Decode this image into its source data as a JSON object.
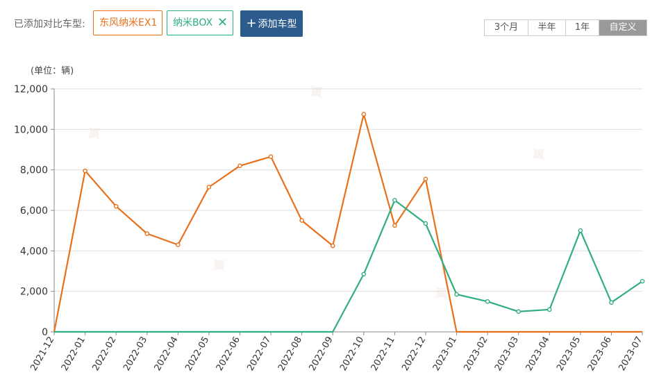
{
  "toolbar": {
    "compare_label": "已添加对比车型:",
    "models": [
      "东风纳米EX1",
      "纳米BOX"
    ],
    "remove_icon": "close-icon",
    "add_button_label": "添加车型",
    "add_icon": "plus-icon",
    "ranges": [
      "3个月",
      "半年",
      "1年",
      "自定义"
    ],
    "active_range": "自定义"
  },
  "chart_data": {
    "type": "line",
    "unit_label": "(单位：辆)",
    "title": "",
    "xlabel": "",
    "ylabel": "",
    "ylim": [
      0,
      12000
    ],
    "yticks": [
      "0",
      "2,000",
      "4,000",
      "6,000",
      "8,000",
      "10,000",
      "12,000"
    ],
    "grid": true,
    "legend": "none",
    "categories": [
      "2021-12",
      "2022-01",
      "2022-02",
      "2022-03",
      "2022-04",
      "2022-05",
      "2022-06",
      "2022-07",
      "2022-08",
      "2022-09",
      "2022-10",
      "2022-11",
      "2022-12",
      "2023-01",
      "2023-02",
      "2023-03",
      "2023-04",
      "2023-05",
      "2023-06",
      "2023-07"
    ],
    "series": [
      {
        "name": "东风纳米EX1",
        "color": "#e8701a",
        "values": [
          0,
          7950,
          6200,
          4850,
          4300,
          7150,
          8200,
          8650,
          5500,
          4250,
          10750,
          5250,
          7550,
          0,
          0,
          0,
          0,
          0,
          0,
          0
        ]
      },
      {
        "name": "纳米BOX",
        "color": "#2fae80",
        "values": [
          0,
          0,
          0,
          0,
          0,
          0,
          0,
          0,
          0,
          0,
          2850,
          6500,
          5350,
          1850,
          1500,
          1000,
          1100,
          5000,
          1450,
          2500
        ]
      }
    ]
  }
}
